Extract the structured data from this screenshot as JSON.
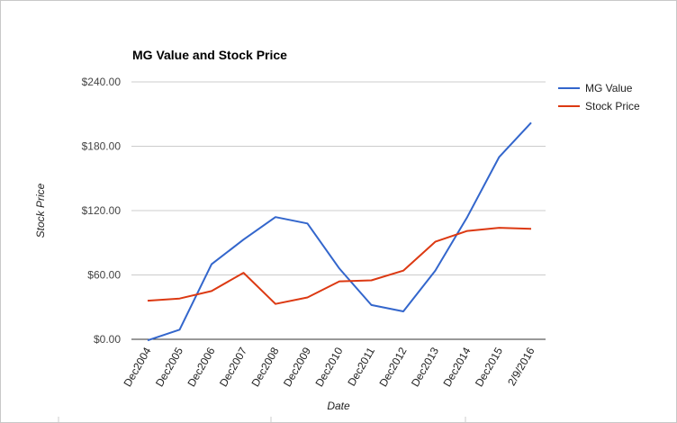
{
  "chart_data": {
    "type": "line",
    "title": "MG Value and Stock Price",
    "xlabel": "Date",
    "ylabel": "Stock Price",
    "categories": [
      "Dec2004",
      "Dec2005",
      "Dec2006",
      "Dec2007",
      "Dec2008",
      "Dec2009",
      "Dec2010",
      "Dec2011",
      "Dec2012",
      "Dec2013",
      "Dec2014",
      "Dec2015",
      "2/9/2016"
    ],
    "y_ticks": [
      "$0.00",
      "$60.00",
      "$120.00",
      "$180.00",
      "$240.00"
    ],
    "y_tick_values": [
      0,
      60,
      120,
      180,
      240
    ],
    "ylim": [
      0,
      240
    ],
    "grid": true,
    "legend_position": "right",
    "series": [
      {
        "name": "MG Value",
        "color": "#3366cc",
        "values": [
          -1,
          9,
          70,
          93,
          114,
          108,
          66,
          32,
          26,
          64,
          114,
          170,
          202
        ]
      },
      {
        "name": "Stock Price",
        "color": "#dc3912",
        "values": [
          36,
          38,
          45,
          62,
          33,
          39,
          54,
          55,
          64,
          91,
          101,
          104,
          103
        ]
      }
    ]
  }
}
